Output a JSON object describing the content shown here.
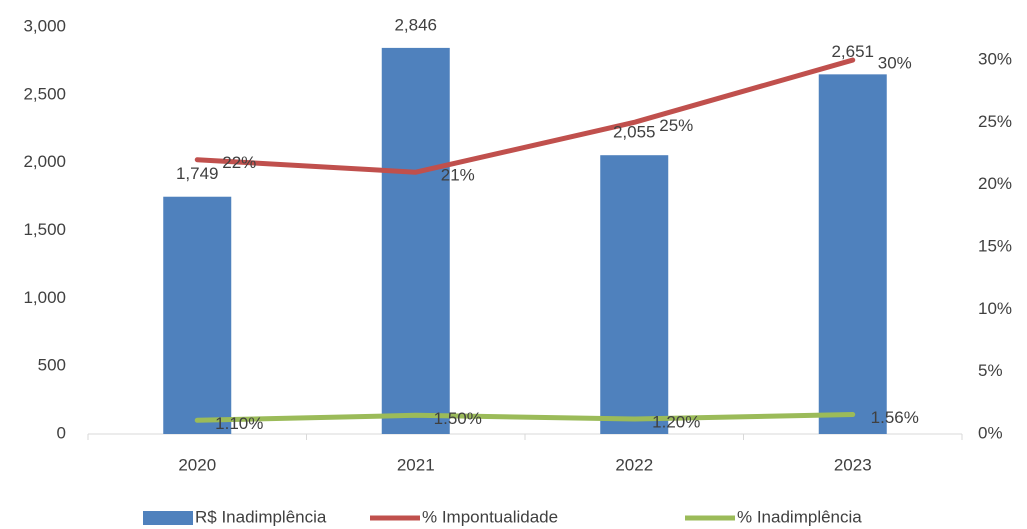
{
  "chart_data": {
    "type": "bar",
    "categories": [
      "2020",
      "2021",
      "2022",
      "2023"
    ],
    "series": [
      {
        "name": "R$ Inadimplência",
        "type": "bar",
        "color": "#4f81bd",
        "values": [
          1749,
          2846,
          2055,
          2651
        ],
        "value_labels": [
          "1,749",
          "2,846",
          "2,055",
          "2,651"
        ]
      },
      {
        "name": "% Impontualidade",
        "type": "line",
        "axis": "y2",
        "color": "#c0504d",
        "values": [
          22,
          21,
          25,
          30
        ],
        "value_labels": [
          "22%",
          "21%",
          "25%",
          "30%"
        ]
      },
      {
        "name": "% Inadimplência",
        "type": "line",
        "axis": "y2",
        "color": "#9bbb59",
        "values": [
          1.1,
          1.5,
          1.2,
          1.56
        ],
        "value_labels": [
          "1.10%",
          "1.50%",
          "1.20%",
          "1.56%"
        ]
      }
    ],
    "ylim": [
      0,
      3000
    ],
    "yticks": [
      0,
      500,
      {
        "value": 1000,
        "label": "1,000"
      },
      {
        "value": 1500,
        "label": "1,500"
      },
      {
        "value": 2000,
        "label": "2,000"
      },
      {
        "value": 2500,
        "label": "2,500"
      },
      {
        "value": 3000,
        "label": "3,000"
      }
    ],
    "y2lim": [
      0,
      32.65
    ],
    "y2ticks": [
      {
        "value": 0,
        "label": "0%"
      },
      {
        "value": 5,
        "label": "5%"
      },
      {
        "value": 10,
        "label": "10%"
      },
      {
        "value": 15,
        "label": "15%"
      },
      {
        "value": 20,
        "label": "20%"
      },
      {
        "value": 25,
        "label": "25%"
      },
      {
        "value": 30,
        "label": "30%"
      }
    ],
    "grid": false,
    "legend": "bottom"
  }
}
